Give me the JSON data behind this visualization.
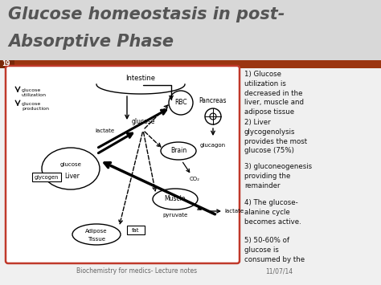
{
  "title_line1": "Glucose homeostasis in post-",
  "title_line2": "Absorptive Phase",
  "slide_number": "19",
  "header_bar_color": "#9B3510",
  "background_color": "#f0f0f0",
  "diagram_border_color": "#c0392b",
  "title_color": "#555555",
  "text_color": "#111111",
  "footer_text": "Biochemistry for medics- Lecture notes",
  "footer_date": "11/07/14",
  "notes": [
    "1) Glucose\nutilization is\ndecreased in the\nliver, muscle and\nadipose tissue",
    "2) Liver\nglycogenolysis\nprovides the most\nglucose (75%)",
    "3) gluconeogenesis\nproviding the\nremainder",
    "4) The glucose-\nalanine cycle\nbecomes active.",
    "5) 50-60% of\nglucose is\nconsumed by the"
  ]
}
